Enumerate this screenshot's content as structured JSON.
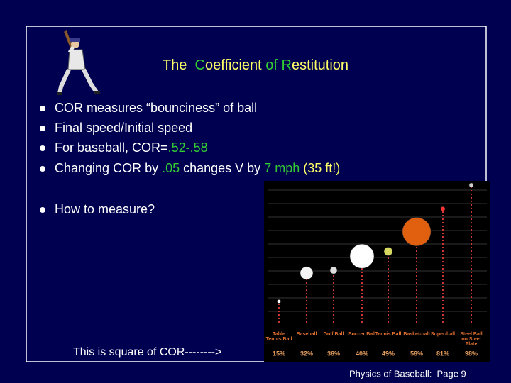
{
  "slide": {
    "title": [
      {
        "text": "The  ",
        "color": "#ffff66"
      },
      {
        "text": "C",
        "color": "#33cc33"
      },
      {
        "text": "oefficient ",
        "color": "#ffff66"
      },
      {
        "text": "of ",
        "color": "#33cc33"
      },
      {
        "text": "R",
        "color": "#33cc33"
      },
      {
        "text": "estitution",
        "color": "#ffff66"
      }
    ],
    "bullets": [
      [
        {
          "text": "COR measures “bounciness” of ball",
          "color": "#ffffff"
        }
      ],
      [
        {
          "text": "Final speed/Initial speed",
          "color": "#ffffff"
        }
      ],
      [
        {
          "text": "For baseball, COR=",
          "color": "#ffffff"
        },
        {
          "text": ".52-.58",
          "color": "#33cc33"
        }
      ],
      [
        {
          "text": "Changing COR by ",
          "color": "#ffffff"
        },
        {
          "text": ".05",
          "color": "#33cc33"
        },
        {
          "text": " changes V by ",
          "color": "#ffffff"
        },
        {
          "text": "7 mph",
          "color": "#33cc33"
        },
        {
          "text": " (35 ft!)",
          "color": "#ffff66"
        }
      ],
      [
        {
          "text": "How to measure?",
          "color": "#ffffff"
        }
      ]
    ],
    "caption": "This is square of COR-------->",
    "footer": "Physics of Baseball:  Page 9"
  },
  "chart_data": {
    "type": "bar",
    "categories": [
      "Table Tennis Ball",
      "Baseball",
      "Golf Ball",
      "Soccer Ball",
      "Tennis Ball",
      "Basket-ball",
      "Super-ball",
      "Steel Ball on Steel Plate"
    ],
    "values": [
      15,
      32,
      36,
      40,
      49,
      56,
      81,
      98
    ],
    "value_labels": [
      "15%",
      "32%",
      "36%",
      "40%",
      "49%",
      "56%",
      "81%",
      "98%"
    ],
    "ylim": [
      0,
      100
    ],
    "color": "#cc3333"
  }
}
